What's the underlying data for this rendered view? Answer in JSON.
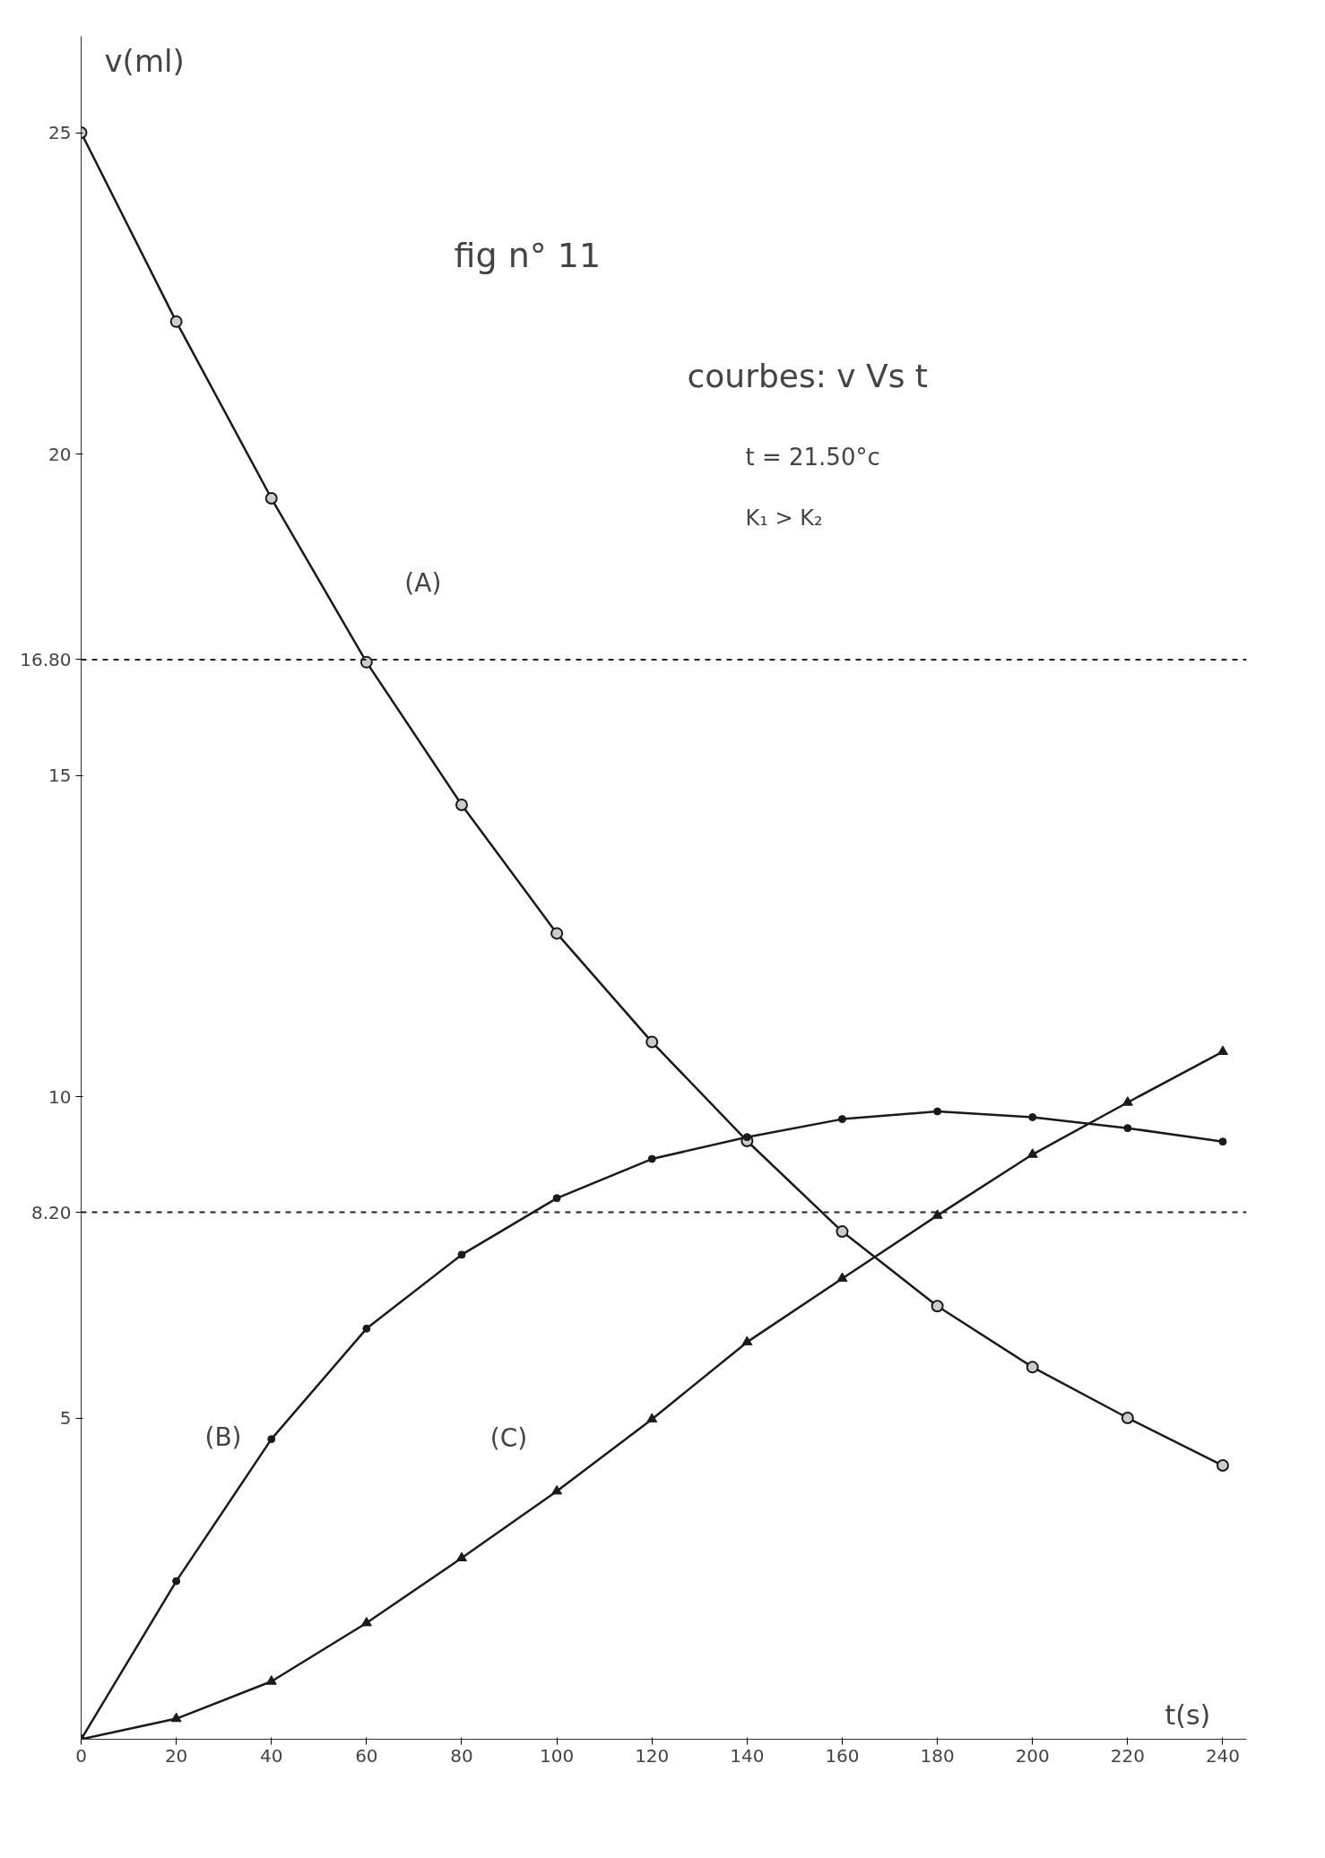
{
  "chart_data": {
    "type": "line",
    "xlabel": "t(s)",
    "ylabel": "v(ml)",
    "annotations": [
      "fig n° 11",
      "courbes:  v Vs t",
      "t = 21.50°c",
      "K₁ > K₂"
    ],
    "x": [
      0,
      20,
      40,
      60,
      80,
      100,
      120,
      140,
      160,
      180,
      200,
      220,
      240
    ],
    "series": [
      {
        "name": "(A)",
        "color": "#1a1a1a",
        "marker": "circle",
        "values": [
          25.0,
          22.06,
          19.31,
          16.76,
          14.54,
          12.54,
          10.85,
          9.31,
          7.9,
          6.74,
          5.79,
          5.0,
          4.26
        ]
      },
      {
        "name": "(B)",
        "color": "#1a1a1a",
        "marker": "dot",
        "values": [
          0,
          2.46,
          4.67,
          6.39,
          7.54,
          8.42,
          9.03,
          9.37,
          9.65,
          9.77,
          9.68,
          9.51,
          9.3
        ]
      },
      {
        "name": "(C)",
        "color": "#1a1a1a",
        "marker": "triangle",
        "values": [
          0,
          0.32,
          0.9,
          1.81,
          2.82,
          3.86,
          4.98,
          6.18,
          7.17,
          8.15,
          9.1,
          9.91,
          10.7
        ]
      }
    ],
    "ref_lines": [
      {
        "axis": "y",
        "value": 16.8,
        "line_style": "dashed"
      },
      {
        "axis": "y",
        "value": 8.2,
        "line_style": "dashed"
      }
    ],
    "xlim": [
      0,
      245
    ],
    "ylim": [
      0,
      26.5
    ],
    "xticks": [
      0,
      20,
      40,
      60,
      80,
      100,
      120,
      140,
      160,
      180,
      200,
      220,
      240
    ],
    "yticks": [
      5,
      {
        "value": 8.2,
        "label": "8.20"
      },
      10,
      15,
      {
        "value": 16.8,
        "label": "16.80"
      },
      20,
      25
    ],
    "grid": false,
    "line_style": "solid"
  }
}
